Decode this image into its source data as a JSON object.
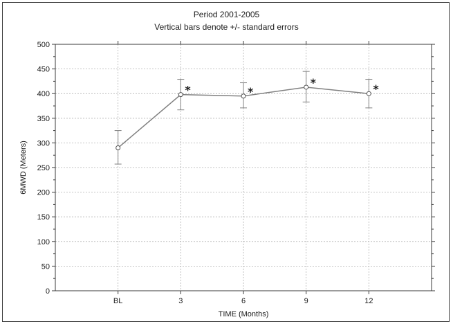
{
  "chart_data": {
    "type": "line",
    "title": "Period 2001-2005",
    "subtitle": "Vertical bars denote +/- standard errors",
    "xlabel": "TIME (Months)",
    "ylabel": "6MWD (Meters)",
    "categories": [
      "BL",
      "3",
      "6",
      "9",
      "12"
    ],
    "values": [
      290,
      398,
      395,
      413,
      400
    ],
    "error_low": [
      257,
      367,
      371,
      383,
      371
    ],
    "error_high": [
      325,
      429,
      422,
      445,
      429
    ],
    "annotations": [
      "",
      "*",
      "*",
      "*",
      "*"
    ],
    "ylim": [
      0,
      500
    ],
    "yticks": [
      0,
      50,
      100,
      150,
      200,
      250,
      300,
      350,
      400,
      450,
      500
    ],
    "grid": true,
    "colors": {
      "line": "#808080",
      "marker_fill": "#ffffff",
      "marker_stroke": "#505050",
      "error_bar": "#808080",
      "grid": "#b0b0b0"
    }
  }
}
